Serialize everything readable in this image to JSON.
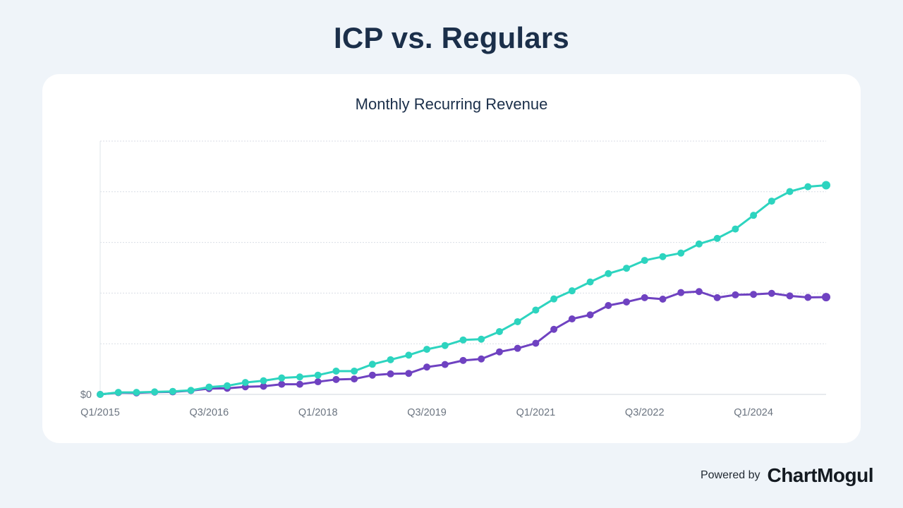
{
  "page": {
    "title": "ICP vs. Regulars",
    "footer": {
      "powered_by": "Powered by",
      "brand": "ChartMogul"
    }
  },
  "chart_data": {
    "type": "line",
    "title": "Monthly Recurring Revenue",
    "xlabel": "",
    "ylabel": "",
    "y_tick_labels": [
      "$0"
    ],
    "x_tick_labels": [
      "Q1/2015",
      "Q3/2016",
      "Q1/2018",
      "Q3/2019",
      "Q1/2021",
      "Q3/2022",
      "Q1/2024"
    ],
    "ylim": [
      0,
      100
    ],
    "grid": true,
    "legend": "none",
    "categories": [
      "Q1/2015",
      "Q2/2015",
      "Q3/2015",
      "Q4/2015",
      "Q1/2016",
      "Q2/2016",
      "Q3/2016",
      "Q4/2016",
      "Q1/2017",
      "Q2/2017",
      "Q3/2017",
      "Q4/2017",
      "Q1/2018",
      "Q2/2018",
      "Q3/2018",
      "Q4/2018",
      "Q1/2019",
      "Q2/2019",
      "Q3/2019",
      "Q4/2019",
      "Q1/2020",
      "Q2/2020",
      "Q3/2020",
      "Q4/2020",
      "Q1/2021",
      "Q2/2021",
      "Q3/2021",
      "Q4/2021",
      "Q1/2022",
      "Q2/2022",
      "Q3/2022",
      "Q4/2022",
      "Q1/2023",
      "Q2/2023",
      "Q3/2023",
      "Q4/2023",
      "Q1/2024",
      "Q2/2024",
      "Q3/2024",
      "Q4/2024",
      "Q1/2025"
    ],
    "series": [
      {
        "name": "ICP",
        "color": "#2dd4bf",
        "values": [
          0,
          0.8,
          0.8,
          1.0,
          1.2,
          1.6,
          2.9,
          3.4,
          4.7,
          5.4,
          6.5,
          6.9,
          7.6,
          9.2,
          9.2,
          11.9,
          13.7,
          15.5,
          17.8,
          19.3,
          21.5,
          21.8,
          24.8,
          28.7,
          33.3,
          37.7,
          40.9,
          44.4,
          47.7,
          49.8,
          52.9,
          54.4,
          55.8,
          59.4,
          61.6,
          65.3,
          70.7,
          76.3,
          80.1,
          82.0,
          82.6
        ]
      },
      {
        "name": "Regulars",
        "color": "#6f42c1",
        "values": [
          0,
          0.7,
          0.6,
          0.9,
          1.0,
          1.5,
          2.3,
          2.4,
          3.0,
          3.2,
          4.0,
          4.0,
          5.0,
          5.9,
          6.1,
          7.6,
          8.1,
          8.3,
          10.8,
          11.8,
          13.4,
          14.0,
          16.8,
          18.2,
          20.2,
          25.7,
          29.8,
          31.4,
          35.1,
          36.5,
          38.2,
          37.6,
          40.2,
          40.6,
          38.2,
          39.3,
          39.5,
          39.9,
          38.9,
          38.3,
          38.4
        ]
      }
    ]
  }
}
